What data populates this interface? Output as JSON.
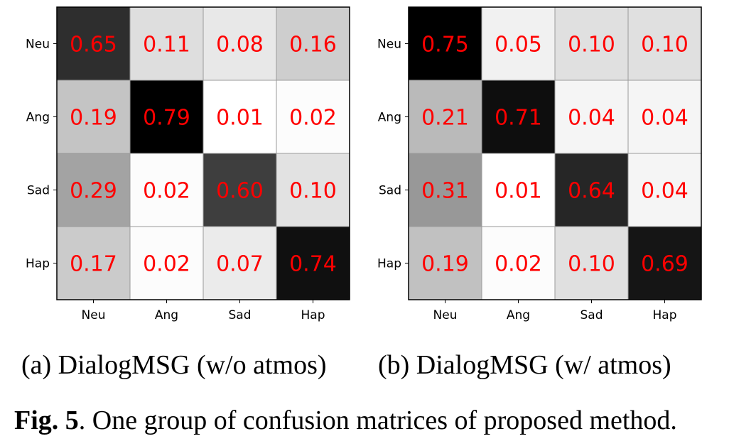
{
  "chart_data": [
    {
      "type": "heatmap",
      "title": "",
      "x_categories": [
        "Neu",
        "Ang",
        "Sad",
        "Hap"
      ],
      "y_categories": [
        "Neu",
        "Ang",
        "Sad",
        "Hap"
      ],
      "values": [
        [
          0.65,
          0.11,
          0.08,
          0.16
        ],
        [
          0.19,
          0.79,
          0.01,
          0.02
        ],
        [
          0.29,
          0.02,
          0.6,
          0.1
        ],
        [
          0.17,
          0.02,
          0.07,
          0.74
        ]
      ],
      "value_labels": [
        [
          "0.65",
          "0.11",
          "0.08",
          "0.16"
        ],
        [
          "0.19",
          "0.79",
          "0.01",
          "0.02"
        ],
        [
          "0.29",
          "0.02",
          "0.60",
          "0.10"
        ],
        [
          "0.17",
          "0.02",
          "0.07",
          "0.74"
        ]
      ],
      "colormap": "gray_r",
      "value_label_color": "#ff0000",
      "grid": true
    },
    {
      "type": "heatmap",
      "title": "",
      "x_categories": [
        "Neu",
        "Ang",
        "Sad",
        "Hap"
      ],
      "y_categories": [
        "Neu",
        "Ang",
        "Sad",
        "Hap"
      ],
      "values": [
        [
          0.75,
          0.05,
          0.1,
          0.1
        ],
        [
          0.21,
          0.71,
          0.04,
          0.04
        ],
        [
          0.31,
          0.01,
          0.64,
          0.04
        ],
        [
          0.19,
          0.02,
          0.1,
          0.69
        ]
      ],
      "value_labels": [
        [
          "0.75",
          "0.05",
          "0.10",
          "0.10"
        ],
        [
          "0.21",
          "0.71",
          "0.04",
          "0.04"
        ],
        [
          "0.31",
          "0.01",
          "0.64",
          "0.04"
        ],
        [
          "0.19",
          "0.02",
          "0.10",
          "0.69"
        ]
      ],
      "colormap": "gray_r",
      "value_label_color": "#ff0000",
      "grid": true
    }
  ],
  "subcaptions": {
    "a": "(a) DialogMSG (w/o atmos)",
    "b": "(b) DialogMSG (w/ atmos)"
  },
  "caption": {
    "label": "Fig. 5",
    "text": ". One group of confusion matrices of proposed method."
  }
}
